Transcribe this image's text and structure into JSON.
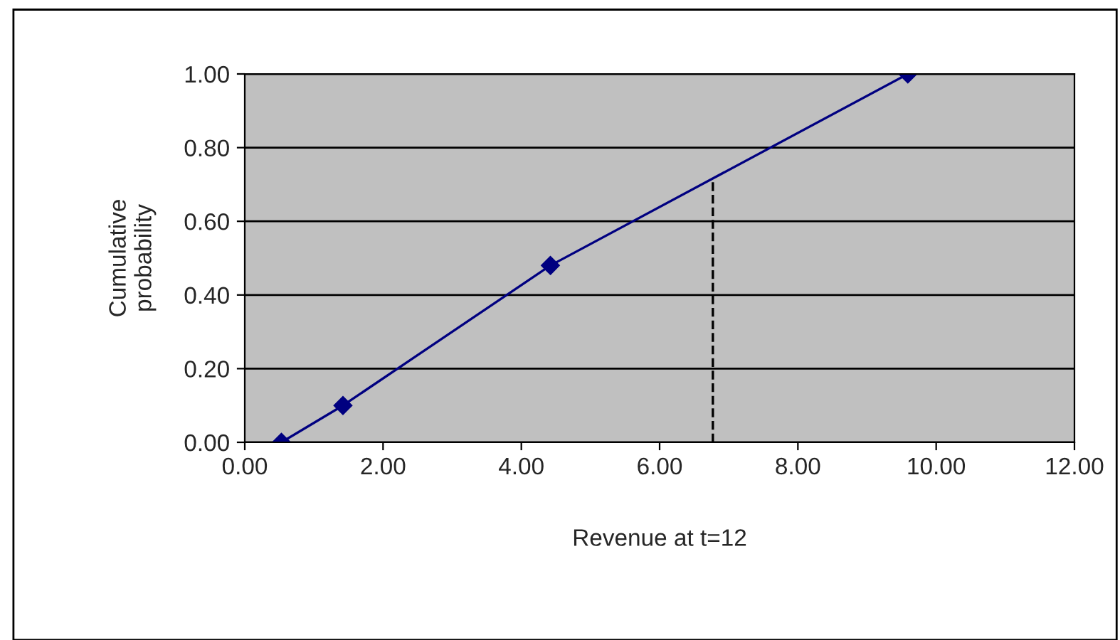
{
  "chart_data": {
    "type": "line",
    "xlabel": "Revenue at t=12",
    "ylabel": "Cumulative\nprobability",
    "x": [
      0.53,
      1.42,
      4.42,
      9.59
    ],
    "series": [
      {
        "color": "#000080",
        "values": [
          0.0,
          0.1,
          0.48,
          1.0
        ]
      }
    ],
    "marker": "diamond",
    "line_style": "solid",
    "grid": "y",
    "legend": false,
    "xlim": [
      0,
      12
    ],
    "ylim": [
      0,
      1
    ],
    "xticks": [
      {
        "value": 0,
        "label": "0.00"
      },
      {
        "value": 2,
        "label": "2.00"
      },
      {
        "value": 4,
        "label": "4.00"
      },
      {
        "value": 6,
        "label": "6.00"
      },
      {
        "value": 8,
        "label": "8.00"
      },
      {
        "value": 10,
        "label": "10.00"
      },
      {
        "value": 12,
        "label": "12.00"
      }
    ],
    "yticks": [
      {
        "value": 0,
        "label": "0.00"
      },
      {
        "value": 0.2,
        "label": "0.20"
      },
      {
        "value": 0.4,
        "label": "0.40"
      },
      {
        "value": 0.6,
        "label": "0.60"
      },
      {
        "value": 0.8,
        "label": "0.80"
      },
      {
        "value": 1,
        "label": "1.00"
      }
    ],
    "ref_lines": [
      {
        "axis": "x",
        "value": 6.77,
        "line_style": "dashed",
        "color": "#000000"
      }
    ]
  }
}
